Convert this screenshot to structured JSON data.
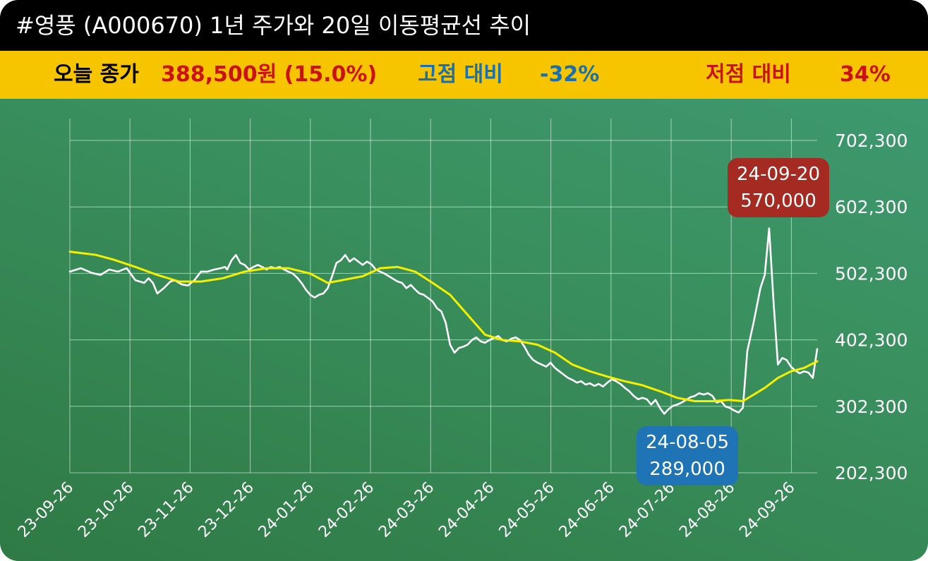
{
  "header": {
    "title": "#영풍 (A000670) 1년 주가와 20일 이동평균선 추이"
  },
  "summary": {
    "close_label": "오늘 종가",
    "close_value": "388,500원 (15.0%)",
    "high_label": "고점 대비",
    "high_value": "-32%",
    "low_label": "저점 대비",
    "low_value": "34%"
  },
  "colors": {
    "title_bg": "#000000",
    "info_bg": "#f7c400",
    "close_value": "#cc1111",
    "high": "#1a6fb0",
    "low": "#cc1111",
    "price_line": "#ffffff",
    "ma_line": "#f4f000",
    "high_box": "#a52a22",
    "low_box": "#1f74b5"
  },
  "annotations": {
    "high": {
      "date": "24-09-20",
      "value": "570,000"
    },
    "low": {
      "date": "24-08-05",
      "value": "289,000"
    }
  },
  "chart_data": {
    "type": "line",
    "x_tick_labels": [
      "23-09-26",
      "23-10-26",
      "23-11-26",
      "23-12-26",
      "24-01-26",
      "24-02-26",
      "24-03-26",
      "24-04-26",
      "24-05-26",
      "24-06-26",
      "24-07-26",
      "24-08-26",
      "24-09-26"
    ],
    "y_tick_labels": [
      "702,300",
      "602,300",
      "502,300",
      "402,300",
      "302,300",
      "202,300"
    ],
    "ylim": [
      202300,
      702300
    ],
    "grid": true,
    "series": [
      {
        "color": "#ffffff",
        "points": [
          [
            0,
            505000
          ],
          [
            5,
            510000
          ],
          [
            10,
            503000
          ],
          [
            14,
            500000
          ],
          [
            18,
            508000
          ],
          [
            22,
            505000
          ],
          [
            26,
            510000
          ],
          [
            30,
            492000
          ],
          [
            34,
            488000
          ],
          [
            36,
            495000
          ],
          [
            38,
            488000
          ],
          [
            40,
            472000
          ],
          [
            43,
            480000
          ],
          [
            46,
            490000
          ],
          [
            48,
            492000
          ],
          [
            51,
            486000
          ],
          [
            54,
            484000
          ],
          [
            57,
            492000
          ],
          [
            60,
            505000
          ],
          [
            63,
            505000
          ],
          [
            66,
            508000
          ],
          [
            69,
            510000
          ],
          [
            71,
            512000
          ],
          [
            72,
            508000
          ],
          [
            74,
            522000
          ],
          [
            76,
            530000
          ],
          [
            78,
            518000
          ],
          [
            80,
            515000
          ],
          [
            82,
            508000
          ],
          [
            84,
            512000
          ],
          [
            86,
            515000
          ],
          [
            88,
            512000
          ],
          [
            90,
            508000
          ],
          [
            92,
            512000
          ],
          [
            94,
            510000
          ],
          [
            96,
            512000
          ],
          [
            98,
            508000
          ],
          [
            100,
            505000
          ],
          [
            102,
            502000
          ],
          [
            104,
            496000
          ],
          [
            106,
            488000
          ],
          [
            108,
            478000
          ],
          [
            110,
            470000
          ],
          [
            112,
            466000
          ],
          [
            114,
            470000
          ],
          [
            116,
            472000
          ],
          [
            118,
            480000
          ],
          [
            120,
            498000
          ],
          [
            122,
            518000
          ],
          [
            124,
            522000
          ],
          [
            126,
            530000
          ],
          [
            128,
            520000
          ],
          [
            130,
            525000
          ],
          [
            132,
            520000
          ],
          [
            134,
            515000
          ],
          [
            136,
            520000
          ],
          [
            138,
            516000
          ],
          [
            140,
            508000
          ],
          [
            142,
            505000
          ],
          [
            144,
            502000
          ],
          [
            146,
            498000
          ],
          [
            148,
            494000
          ],
          [
            150,
            490000
          ],
          [
            152,
            488000
          ],
          [
            154,
            480000
          ],
          [
            156,
            485000
          ],
          [
            158,
            478000
          ],
          [
            160,
            472000
          ],
          [
            162,
            470000
          ],
          [
            164,
            465000
          ],
          [
            166,
            460000
          ],
          [
            168,
            450000
          ],
          [
            170,
            445000
          ],
          [
            172,
            428000
          ],
          [
            174,
            395000
          ],
          [
            176,
            383000
          ],
          [
            178,
            390000
          ],
          [
            180,
            392000
          ],
          [
            182,
            395000
          ],
          [
            184,
            402000
          ],
          [
            186,
            406000
          ],
          [
            188,
            400000
          ],
          [
            190,
            398000
          ],
          [
            192,
            402000
          ],
          [
            194,
            405000
          ],
          [
            196,
            408000
          ],
          [
            198,
            402000
          ],
          [
            200,
            400000
          ],
          [
            202,
            404000
          ],
          [
            204,
            406000
          ],
          [
            206,
            402000
          ],
          [
            208,
            392000
          ],
          [
            210,
            380000
          ],
          [
            212,
            372000
          ],
          [
            214,
            368000
          ],
          [
            216,
            365000
          ],
          [
            218,
            362000
          ],
          [
            220,
            368000
          ],
          [
            222,
            360000
          ],
          [
            224,
            355000
          ],
          [
            226,
            350000
          ],
          [
            228,
            345000
          ],
          [
            230,
            342000
          ],
          [
            232,
            338000
          ],
          [
            234,
            340000
          ],
          [
            236,
            335000
          ],
          [
            238,
            337000
          ],
          [
            240,
            333000
          ],
          [
            242,
            336000
          ],
          [
            244,
            332000
          ],
          [
            246,
            338000
          ],
          [
            248,
            343000
          ],
          [
            250,
            340000
          ],
          [
            252,
            336000
          ],
          [
            254,
            330000
          ],
          [
            256,
            325000
          ],
          [
            258,
            318000
          ],
          [
            260,
            313000
          ],
          [
            262,
            315000
          ],
          [
            264,
            313000
          ],
          [
            266,
            305000
          ],
          [
            268,
            312000
          ],
          [
            270,
            300000
          ],
          [
            272,
            291000
          ],
          [
            274,
            298000
          ],
          [
            276,
            303000
          ],
          [
            278,
            305000
          ],
          [
            280,
            308000
          ],
          [
            282,
            312000
          ],
          [
            284,
            316000
          ],
          [
            286,
            318000
          ],
          [
            288,
            322000
          ],
          [
            290,
            320000
          ],
          [
            292,
            322000
          ],
          [
            294,
            318000
          ],
          [
            296,
            308000
          ],
          [
            298,
            310000
          ],
          [
            300,
            302000
          ],
          [
            302,
            300000
          ],
          [
            304,
            296000
          ],
          [
            306,
            293000
          ],
          [
            308,
            300000
          ],
          [
            310,
            385000
          ],
          [
            313,
            430000
          ],
          [
            316,
            480000
          ],
          [
            318,
            500000
          ],
          [
            320,
            570000
          ],
          [
            322,
            460000
          ],
          [
            324,
            365000
          ],
          [
            326,
            375000
          ],
          [
            328,
            372000
          ],
          [
            330,
            362000
          ],
          [
            332,
            356000
          ],
          [
            334,
            352000
          ],
          [
            336,
            355000
          ],
          [
            338,
            353000
          ],
          [
            340,
            345000
          ],
          [
            342,
            388500
          ]
        ]
      },
      {
        "color": "#f4f000",
        "points": [
          [
            0,
            535000
          ],
          [
            12,
            530000
          ],
          [
            20,
            523000
          ],
          [
            30,
            512000
          ],
          [
            40,
            500000
          ],
          [
            50,
            490000
          ],
          [
            60,
            490000
          ],
          [
            70,
            495000
          ],
          [
            80,
            505000
          ],
          [
            90,
            510000
          ],
          [
            100,
            510000
          ],
          [
            110,
            502000
          ],
          [
            118,
            488000
          ],
          [
            126,
            493000
          ],
          [
            134,
            498000
          ],
          [
            142,
            510000
          ],
          [
            150,
            512000
          ],
          [
            158,
            505000
          ],
          [
            166,
            488000
          ],
          [
            174,
            470000
          ],
          [
            182,
            440000
          ],
          [
            190,
            410000
          ],
          [
            198,
            402000
          ],
          [
            206,
            400000
          ],
          [
            214,
            395000
          ],
          [
            222,
            383000
          ],
          [
            230,
            365000
          ],
          [
            238,
            355000
          ],
          [
            246,
            347000
          ],
          [
            254,
            340000
          ],
          [
            262,
            334000
          ],
          [
            270,
            325000
          ],
          [
            278,
            315000
          ],
          [
            286,
            310000
          ],
          [
            294,
            310000
          ],
          [
            302,
            312000
          ],
          [
            308,
            310000
          ],
          [
            312,
            318000
          ],
          [
            318,
            330000
          ],
          [
            324,
            345000
          ],
          [
            330,
            355000
          ],
          [
            336,
            360000
          ],
          [
            342,
            370000
          ]
        ]
      }
    ]
  }
}
